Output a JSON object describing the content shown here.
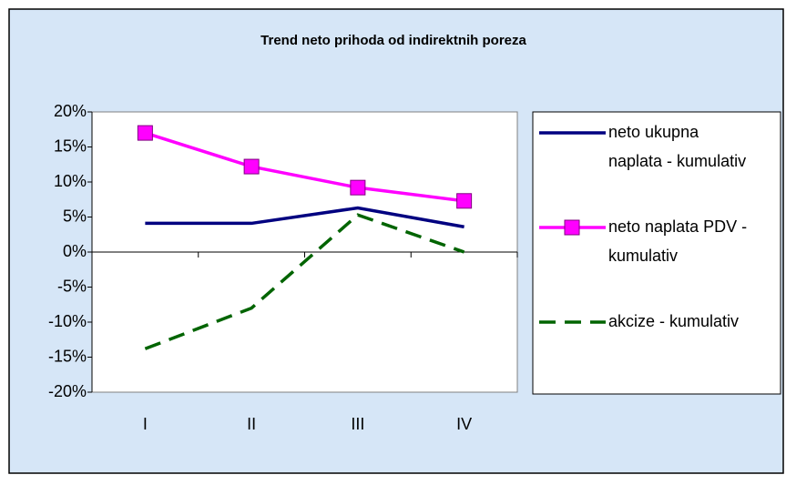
{
  "chart_data": {
    "type": "line",
    "title": "Trend neto prihoda od indirektnih poreza",
    "categories": [
      "I",
      "II",
      "III",
      "IV"
    ],
    "series": [
      {
        "name": "neto ukupna naplata - kumulativ",
        "color": "#000080",
        "style": "solid",
        "marker": "none",
        "values": [
          4.1,
          4.1,
          6.3,
          3.6
        ]
      },
      {
        "name": "neto naplata PDV - kumulativ",
        "color": "#ff00ff",
        "style": "solid",
        "marker": "square",
        "values": [
          17,
          12.2,
          9.2,
          7.3
        ]
      },
      {
        "name": "akcize - kumulativ",
        "color": "#006400",
        "style": "dashed",
        "marker": "none",
        "values": [
          -13.8,
          -8,
          5.3,
          0
        ]
      }
    ],
    "ylim": [
      -20,
      20
    ],
    "yticks": [
      {
        "value": -20,
        "label": "-20%"
      },
      {
        "value": -15,
        "label": "-15%"
      },
      {
        "value": -10,
        "label": "-10%"
      },
      {
        "value": -5,
        "label": "-5%"
      },
      {
        "value": 0,
        "label": "0%"
      },
      {
        "value": 5,
        "label": "5%"
      },
      {
        "value": 10,
        "label": "10%"
      },
      {
        "value": 15,
        "label": "15%"
      },
      {
        "value": 20,
        "label": "20%"
      }
    ],
    "grid": false,
    "legend": "right"
  }
}
